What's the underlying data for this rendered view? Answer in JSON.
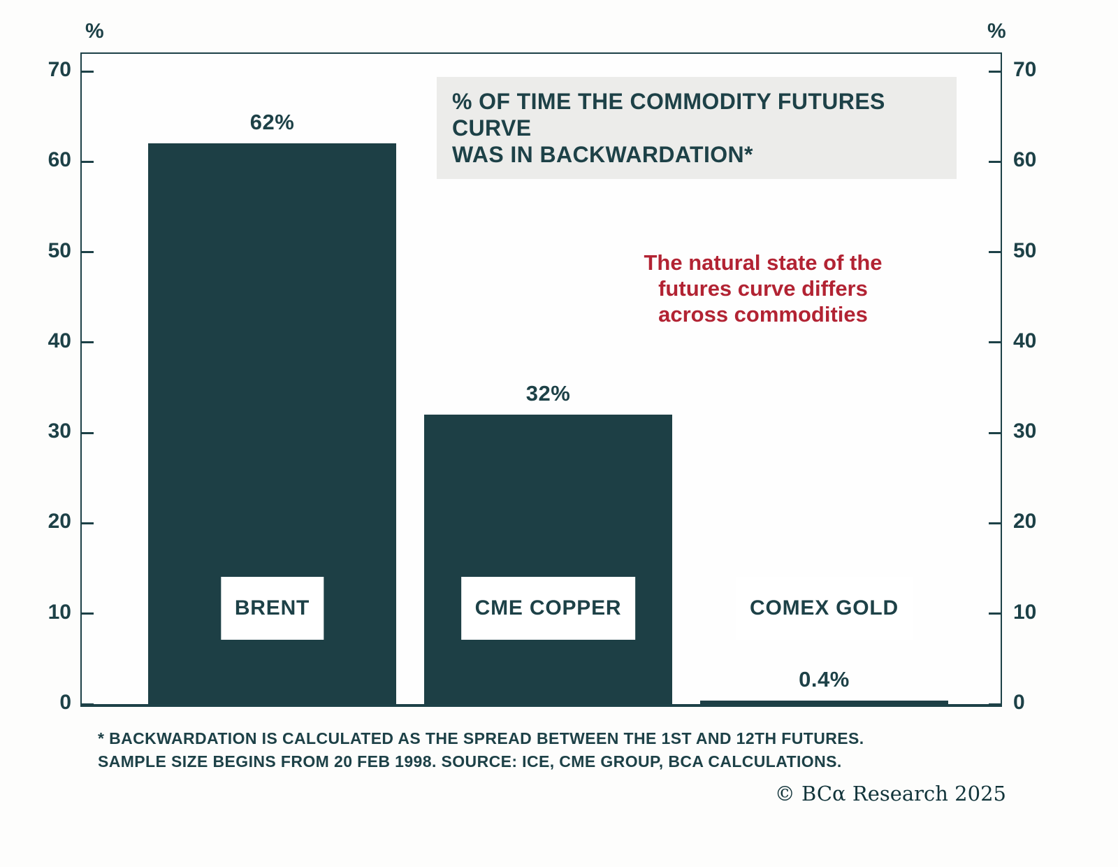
{
  "chart_data": {
    "type": "bar",
    "title": "% OF TIME THE COMMODITY FUTURES CURVE WAS IN BACKWARDATION*",
    "categories": [
      "BRENT",
      "CME COPPER",
      "COMEX GOLD"
    ],
    "values": [
      62,
      32,
      0.4
    ],
    "value_labels": [
      "62%",
      "32%",
      "0.4%"
    ],
    "ylabel": "%",
    "ylim": [
      0,
      70
    ],
    "yticks": [
      0,
      10,
      20,
      30,
      40,
      50,
      60,
      70
    ],
    "grid": false,
    "legend": false,
    "bar_color": "#1d3f45",
    "annotation_color": "#b22333",
    "annotation": "The natural state of the futures curve differs across commodities"
  },
  "title": {
    "line1": "% OF TIME THE COMMODITY FUTURES CURVE",
    "line2": "WAS IN BACKWARDATION*"
  },
  "annotation": {
    "line1": "The natural state of the",
    "line2": "futures curve differs",
    "line3": "across commodities"
  },
  "axis": {
    "left_unit": "%",
    "right_unit": "%"
  },
  "footnote": {
    "line1": "* BACKWARDATION IS CALCULATED AS THE SPREAD BETWEEN THE 1ST AND 12TH FUTURES.",
    "line2": "SAMPLE SIZE BEGINS FROM 20 FEB 1998. SOURCE: ICE, CME GROUP, BCA CALCULATIONS."
  },
  "copyright": "© BCα Research 2025"
}
